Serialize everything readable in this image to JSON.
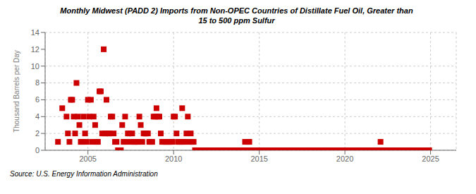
{
  "chart_data": {
    "type": "scatter",
    "title": "Monthly Midwest (PADD 2) Imports from Non-OPEC Countries of Distillate Fuel Oil, Greater than\n15 to 500 ppm Sulfur",
    "y_label": "Thousand Barrels per Day",
    "annotations": [
      "Source: U.S. Energy Information Administration"
    ],
    "color": "#cc0000",
    "marker": "square",
    "grid": true,
    "xlim": [
      2002.5,
      2026.5
    ],
    "xticks": [
      2005,
      2010,
      2015,
      2020,
      2025
    ],
    "ylim": [
      0,
      14
    ],
    "yticks": [
      0,
      2,
      4,
      6,
      8,
      10,
      12,
      14
    ],
    "x": [
      2003.25,
      2003.5,
      2003.75,
      2003.83,
      2003.92,
      2004.0,
      2004.08,
      2004.17,
      2004.25,
      2004.33,
      2004.42,
      2004.5,
      2004.58,
      2004.67,
      2004.75,
      2004.83,
      2004.92,
      2005.0,
      2005.08,
      2005.17,
      2005.25,
      2005.33,
      2005.42,
      2005.5,
      2005.58,
      2005.67,
      2005.75,
      2005.83,
      2005.92,
      2006.0,
      2006.08,
      2006.17,
      2006.25,
      2006.33,
      2006.42,
      2006.5,
      2006.58,
      2006.67,
      2006.75,
      2006.83,
      2006.92,
      2007.0,
      2007.08,
      2007.17,
      2007.25,
      2007.33,
      2007.42,
      2007.5,
      2007.58,
      2007.67,
      2007.75,
      2007.83,
      2007.92,
      2008.0,
      2008.08,
      2008.17,
      2008.25,
      2008.33,
      2008.42,
      2008.5,
      2008.58,
      2008.67,
      2008.75,
      2008.83,
      2008.92,
      2009.0,
      2009.08,
      2009.17,
      2009.25,
      2009.33,
      2009.42,
      2009.5,
      2009.58,
      2009.67,
      2009.75,
      2009.83,
      2009.92,
      2010.0,
      2010.08,
      2010.17,
      2010.25,
      2010.33,
      2010.42,
      2010.5,
      2010.58,
      2010.67,
      2010.75,
      2010.83,
      2010.92,
      2011.0,
      2011.08,
      2011.17,
      2011.25,
      2011.33,
      2011.42,
      2011.5,
      2011.58,
      2011.67,
      2011.75,
      2011.83,
      2011.92,
      2012.0,
      2012.08,
      2012.17,
      2012.25,
      2012.33,
      2012.42,
      2012.5,
      2012.58,
      2012.67,
      2012.75,
      2012.83,
      2012.92,
      2013.0,
      2013.08,
      2013.17,
      2013.25,
      2013.33,
      2013.42,
      2013.5,
      2013.58,
      2013.67,
      2013.75,
      2013.83,
      2013.92,
      2014.0,
      2014.08,
      2014.17,
      2014.25,
      2014.33,
      2014.42,
      2014.5,
      2014.58,
      2014.67,
      2014.75,
      2014.83,
      2014.92,
      2015.0,
      2015.08,
      2015.17,
      2015.25,
      2015.33,
      2015.42,
      2015.5,
      2015.58,
      2015.67,
      2015.75,
      2015.83,
      2015.92,
      2016.0,
      2016.08,
      2016.17,
      2016.25,
      2016.33,
      2016.42,
      2016.5,
      2016.58,
      2016.67,
      2016.75,
      2016.83,
      2016.92,
      2017.0,
      2017.08,
      2017.17,
      2017.25,
      2017.33,
      2017.42,
      2017.5,
      2017.58,
      2017.67,
      2017.75,
      2017.83,
      2017.92,
      2018.0,
      2018.08,
      2018.17,
      2018.25,
      2018.33,
      2018.42,
      2018.5,
      2018.58,
      2018.67,
      2018.75,
      2018.83,
      2018.92,
      2019.0,
      2019.08,
      2019.17,
      2019.25,
      2019.33,
      2019.42,
      2019.5,
      2019.58,
      2019.67,
      2019.75,
      2019.83,
      2019.92,
      2020.0,
      2020.08,
      2020.17,
      2020.25,
      2020.33,
      2020.42,
      2020.5,
      2020.58,
      2020.67,
      2020.75,
      2020.83,
      2020.92,
      2021.0,
      2021.08,
      2021.17,
      2021.25,
      2021.33,
      2021.42,
      2021.5,
      2021.58,
      2021.67,
      2021.75,
      2021.83,
      2021.92,
      2022.0,
      2022.08,
      2022.17,
      2022.25,
      2022.33,
      2022.42,
      2022.5,
      2022.58,
      2022.67,
      2022.75,
      2022.83,
      2022.92,
      2023.0,
      2023.08,
      2023.17,
      2023.25,
      2023.33,
      2023.42,
      2023.5,
      2023.58,
      2023.67,
      2023.75,
      2023.83,
      2023.92,
      2024.0,
      2024.08,
      2024.17,
      2024.25,
      2024.33,
      2024.42,
      2024.5,
      2024.58,
      2024.67,
      2024.75,
      2024.83,
      2024.92
    ],
    "values": [
      1,
      5,
      4,
      2,
      1,
      6,
      6,
      4,
      2,
      8,
      4,
      3,
      1,
      1,
      4,
      2,
      1,
      6,
      4,
      6,
      1,
      4,
      3,
      1,
      1,
      7,
      7,
      2,
      12,
      2,
      6,
      2,
      2,
      4,
      4,
      2,
      1,
      1,
      0,
      0,
      0,
      3,
      1,
      4,
      1,
      2,
      2,
      1,
      2,
      1,
      1,
      1,
      1,
      4,
      3,
      1,
      2,
      2,
      2,
      2,
      1,
      1,
      1,
      4,
      4,
      5,
      4,
      4,
      2,
      1,
      1,
      1,
      1,
      1,
      1,
      1,
      1,
      4,
      4,
      2,
      1,
      1,
      1,
      5,
      1,
      1,
      2,
      4,
      1,
      2,
      1,
      1,
      0,
      0,
      0,
      0,
      0,
      0,
      0,
      0,
      0,
      0,
      0,
      0,
      0,
      0,
      0,
      0,
      0,
      0,
      0,
      0,
      0,
      0,
      0,
      0,
      0,
      0,
      0,
      0,
      0,
      0,
      0,
      0,
      0,
      0,
      0,
      1,
      0,
      1,
      1,
      0,
      0,
      0,
      0,
      0,
      0,
      0,
      0,
      0,
      0,
      0,
      0,
      0,
      0,
      0,
      0,
      0,
      0,
      0,
      0,
      0,
      0,
      0,
      0,
      0,
      0,
      0,
      0,
      0,
      0,
      0,
      0,
      0,
      0,
      0,
      0,
      0,
      0,
      0,
      0,
      0,
      0,
      0,
      0,
      0,
      0,
      0,
      0,
      0,
      0,
      0,
      0,
      0,
      0,
      0,
      0,
      0,
      0,
      0,
      0,
      0,
      0,
      0,
      0,
      0,
      0,
      0,
      0,
      0,
      0,
      0,
      0,
      0,
      0,
      0,
      0,
      0,
      0,
      0,
      0,
      0,
      0,
      0,
      0,
      0,
      0,
      0,
      0,
      0,
      0,
      0,
      1,
      0,
      0,
      0,
      0,
      0,
      0,
      0,
      0,
      0,
      0,
      0,
      0,
      0,
      0,
      0,
      0,
      0,
      0,
      0,
      0,
      0,
      0,
      0,
      0,
      0,
      0,
      0,
      0,
      0,
      0,
      0,
      0,
      0,
      0
    ]
  }
}
